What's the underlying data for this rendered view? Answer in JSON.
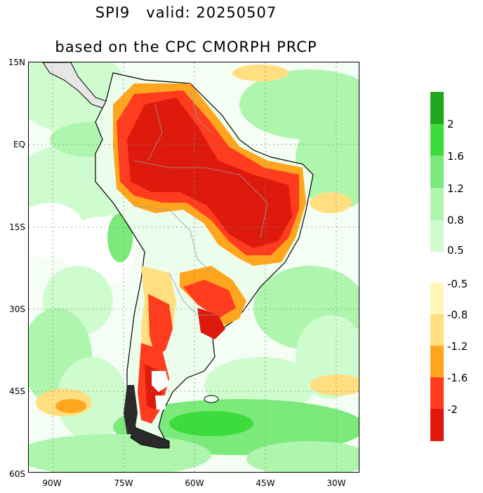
{
  "title": {
    "line1": "SPI9   valid: 20250507",
    "line2": "based on the CPC CMORPH PRCP"
  },
  "map": {
    "lat_labels": [
      "15N",
      "EQ",
      "15S",
      "30S",
      "45S",
      "60S"
    ],
    "lon_labels": [
      "90W",
      "75W",
      "60W",
      "45W",
      "30W"
    ],
    "extent": {
      "lon_min": -95,
      "lon_max": -25,
      "lat_min": -60,
      "lat_max": 15
    },
    "colors": {
      "land_outline": "#000000",
      "borders": "#9a9a9a",
      "grid": "#8a8a8a"
    }
  },
  "colorbar": {
    "wet": [
      {
        "color": "#1fa81f"
      },
      {
        "color": "#3ddc3d",
        "label": "2"
      },
      {
        "color": "#7bea7b",
        "label": "1.6"
      },
      {
        "color": "#aef5ae",
        "label": "1.2"
      },
      {
        "color": "#cffccf",
        "label": "0.8"
      },
      {
        "color": "#ecfdec",
        "label": "0.5"
      }
    ],
    "dry": [
      {
        "color": "#fff7b8",
        "label": "-0.5"
      },
      {
        "color": "#ffdf80",
        "label": "-0.8"
      },
      {
        "color": "#ffa51e",
        "label": "-1.2"
      },
      {
        "color": "#ff3c1e",
        "label": "-1.6"
      },
      {
        "color": "#dd1a0c",
        "label": "-2"
      }
    ]
  }
}
